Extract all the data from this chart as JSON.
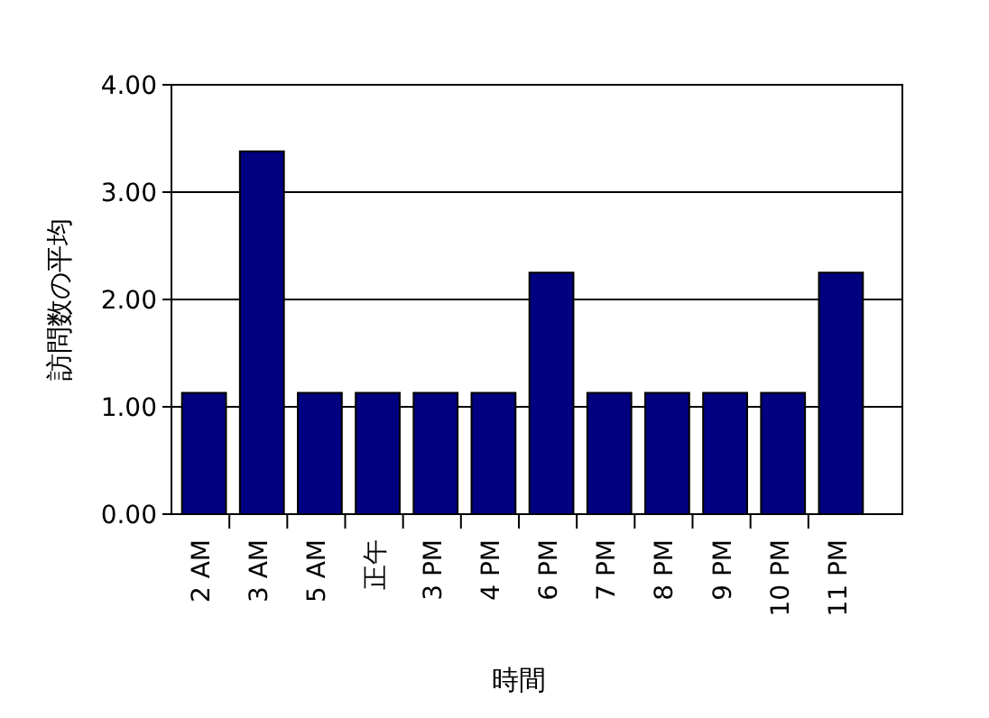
{
  "chart_data": {
    "type": "bar",
    "xlabel": "時間",
    "ylabel": "訪問数の平均",
    "categories": [
      "2 AM",
      "3 AM",
      "5 AM",
      "正午",
      "3 PM",
      "4 PM",
      "6 PM",
      "7 PM",
      "8 PM",
      "9 PM",
      "10 PM",
      "11 PM"
    ],
    "values": [
      1.13,
      3.38,
      1.13,
      1.13,
      1.13,
      1.13,
      2.25,
      1.13,
      1.13,
      1.13,
      1.13,
      2.25
    ],
    "color": "#000080",
    "ylim": [
      0,
      4
    ],
    "yticks": [
      {
        "value": 0,
        "label": "0.00"
      },
      {
        "value": 1,
        "label": "1.00"
      },
      {
        "value": 2,
        "label": "2.00"
      },
      {
        "value": 3,
        "label": "3.00"
      },
      {
        "value": 4,
        "label": "4.00"
      }
    ],
    "grid": "y"
  }
}
